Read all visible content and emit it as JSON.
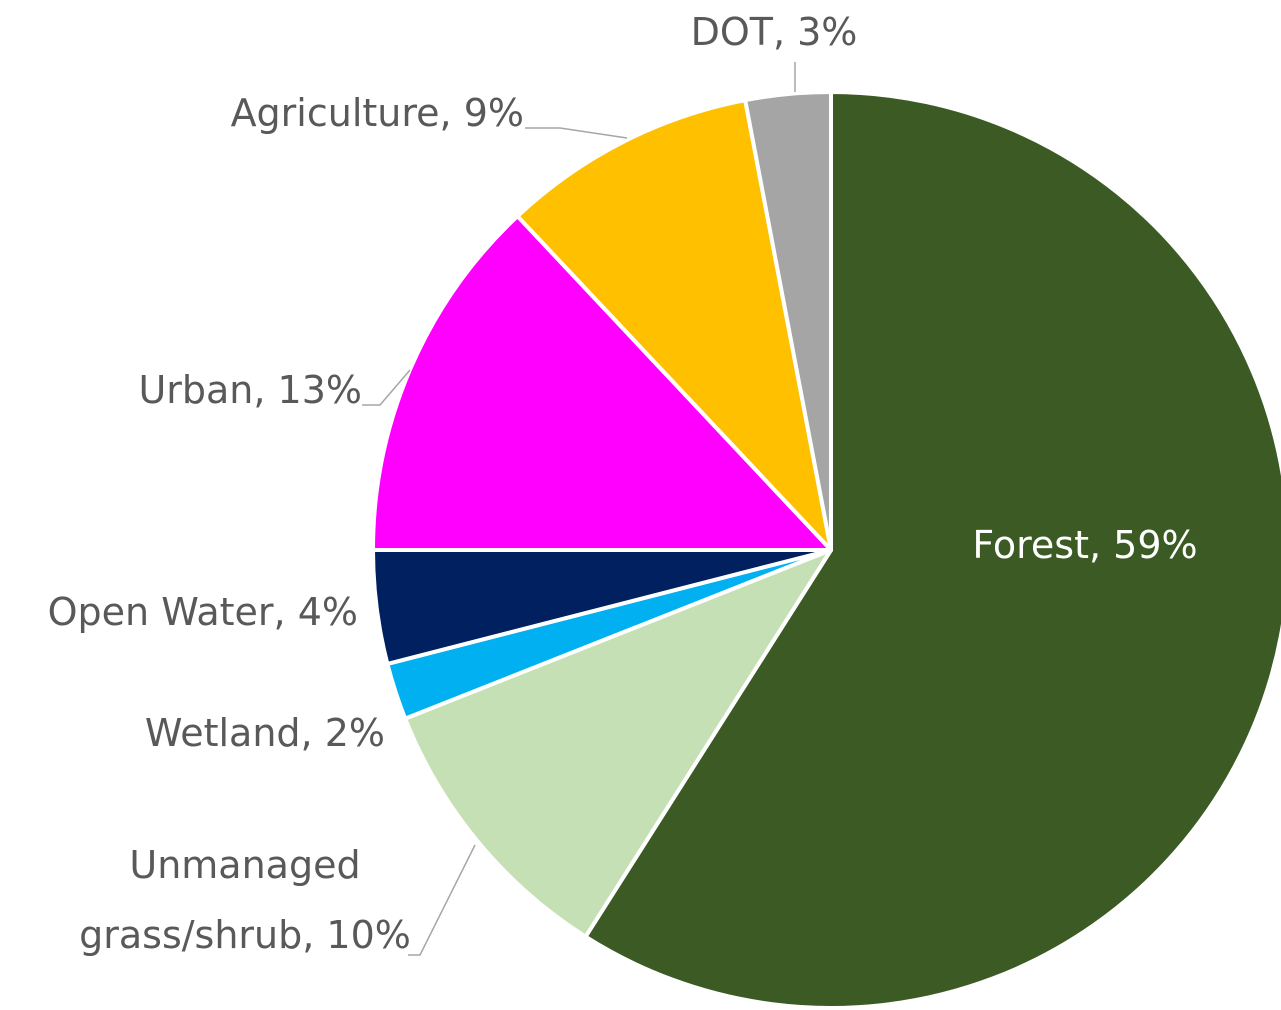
{
  "chart_data": {
    "type": "pie",
    "categories": [
      "Forest, 59%",
      "Unmanaged grass/shrub, 10%",
      "Wetland, 2%",
      "Open Water, 4%",
      "Urban, 13%",
      "Agriculture, 9%",
      "DOT, 3%"
    ],
    "values": [
      59,
      10,
      2,
      4,
      13,
      9,
      3
    ],
    "colors": [
      "#3b5a24",
      "#c5e0b4",
      "#00b0f0",
      "#002060",
      "#ff00ff",
      "#ffc000",
      "#a5a5a5"
    ]
  }
}
